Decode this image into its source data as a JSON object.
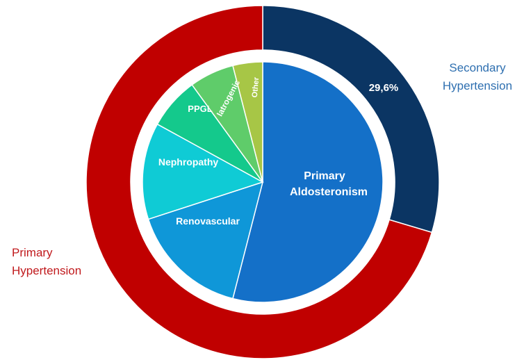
{
  "chart_data": {
    "type": "pie",
    "subtype": "nested-donut",
    "outer_ring": {
      "slices": [
        {
          "name": "Secondary Hypertension",
          "value": 29.6,
          "label": "29,6%",
          "color": "#0b3563"
        },
        {
          "name": "Primary Hypertension",
          "value": 70.4,
          "color": "#c00000"
        }
      ]
    },
    "inner_pie": {
      "slices": [
        {
          "name": "Primary Aldosteronism",
          "value": 54.0,
          "color": "#1470c8"
        },
        {
          "name": "Renovascular",
          "value": 16.0,
          "color": "#0f97d8"
        },
        {
          "name": "Nephropathy",
          "value": 13.0,
          "color": "#0fcbd5"
        },
        {
          "name": "PPGL",
          "value": 7.0,
          "color": "#14c98c"
        },
        {
          "name": "Iatrogenic",
          "value": 6.0,
          "color": "#5fcc6a"
        },
        {
          "name": "Other",
          "value": 4.0,
          "color": "#a7c646"
        }
      ]
    },
    "labels": {
      "secondary_line1": "Secondary",
      "secondary_line2": "Hypertension",
      "primary_line1": "Primary",
      "primary_line2": "Hypertension",
      "aldosteronism_line1": "Primary",
      "aldosteronism_line2": "Aldosteronism",
      "renovascular": "Renovascular",
      "nephropathy": "Nephropathy",
      "ppgl": "PPGL",
      "iatrogenic": "Iatrogenic",
      "other": "Other"
    },
    "colors": {
      "secondary_text": "#2e6fb0",
      "primary_text": "#c0191c"
    }
  }
}
